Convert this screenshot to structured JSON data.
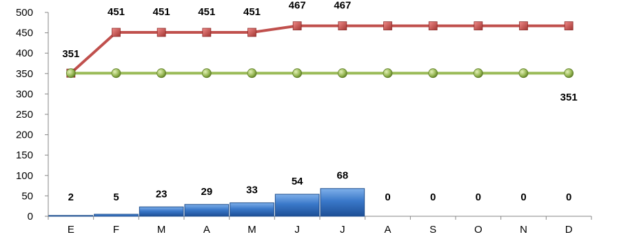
{
  "chart_data": {
    "type": "bar",
    "categories": [
      "E",
      "F",
      "M",
      "A",
      "M",
      "J",
      "J",
      "A",
      "S",
      "O",
      "N",
      "D"
    ],
    "ylim": [
      0,
      500
    ],
    "yticks": [
      0,
      50,
      100,
      150,
      200,
      250,
      300,
      350,
      400,
      450,
      500
    ],
    "grid": false,
    "legend": "none",
    "title": "",
    "xlabel": "",
    "ylabel": "",
    "series": [
      {
        "type": "bar",
        "values": [
          2,
          5,
          23,
          29,
          33,
          54,
          68,
          0,
          0,
          0,
          0,
          0
        ],
        "labels": [
          "2",
          "5",
          "23",
          "29",
          "33",
          "54",
          "68",
          "0",
          "0",
          "0",
          "0",
          "0"
        ],
        "color": "#3a78c9"
      },
      {
        "type": "line",
        "values": [
          351,
          451,
          451,
          451,
          451,
          467,
          467,
          467,
          467,
          467,
          467,
          467
        ],
        "labels": [
          "351",
          "451",
          "451",
          "451",
          "451",
          "467",
          "467",
          "",
          "",
          "",
          "",
          ""
        ],
        "color": "#c0504d",
        "marker": "square"
      },
      {
        "type": "line",
        "values": [
          351,
          351,
          351,
          351,
          351,
          351,
          351,
          351,
          351,
          351,
          351,
          351
        ],
        "labels": [
          "",
          "",
          "",
          "",
          "",
          "",
          "",
          "",
          "",
          "",
          "",
          "351"
        ],
        "color": "#9bbb59",
        "marker": "circle"
      }
    ]
  }
}
